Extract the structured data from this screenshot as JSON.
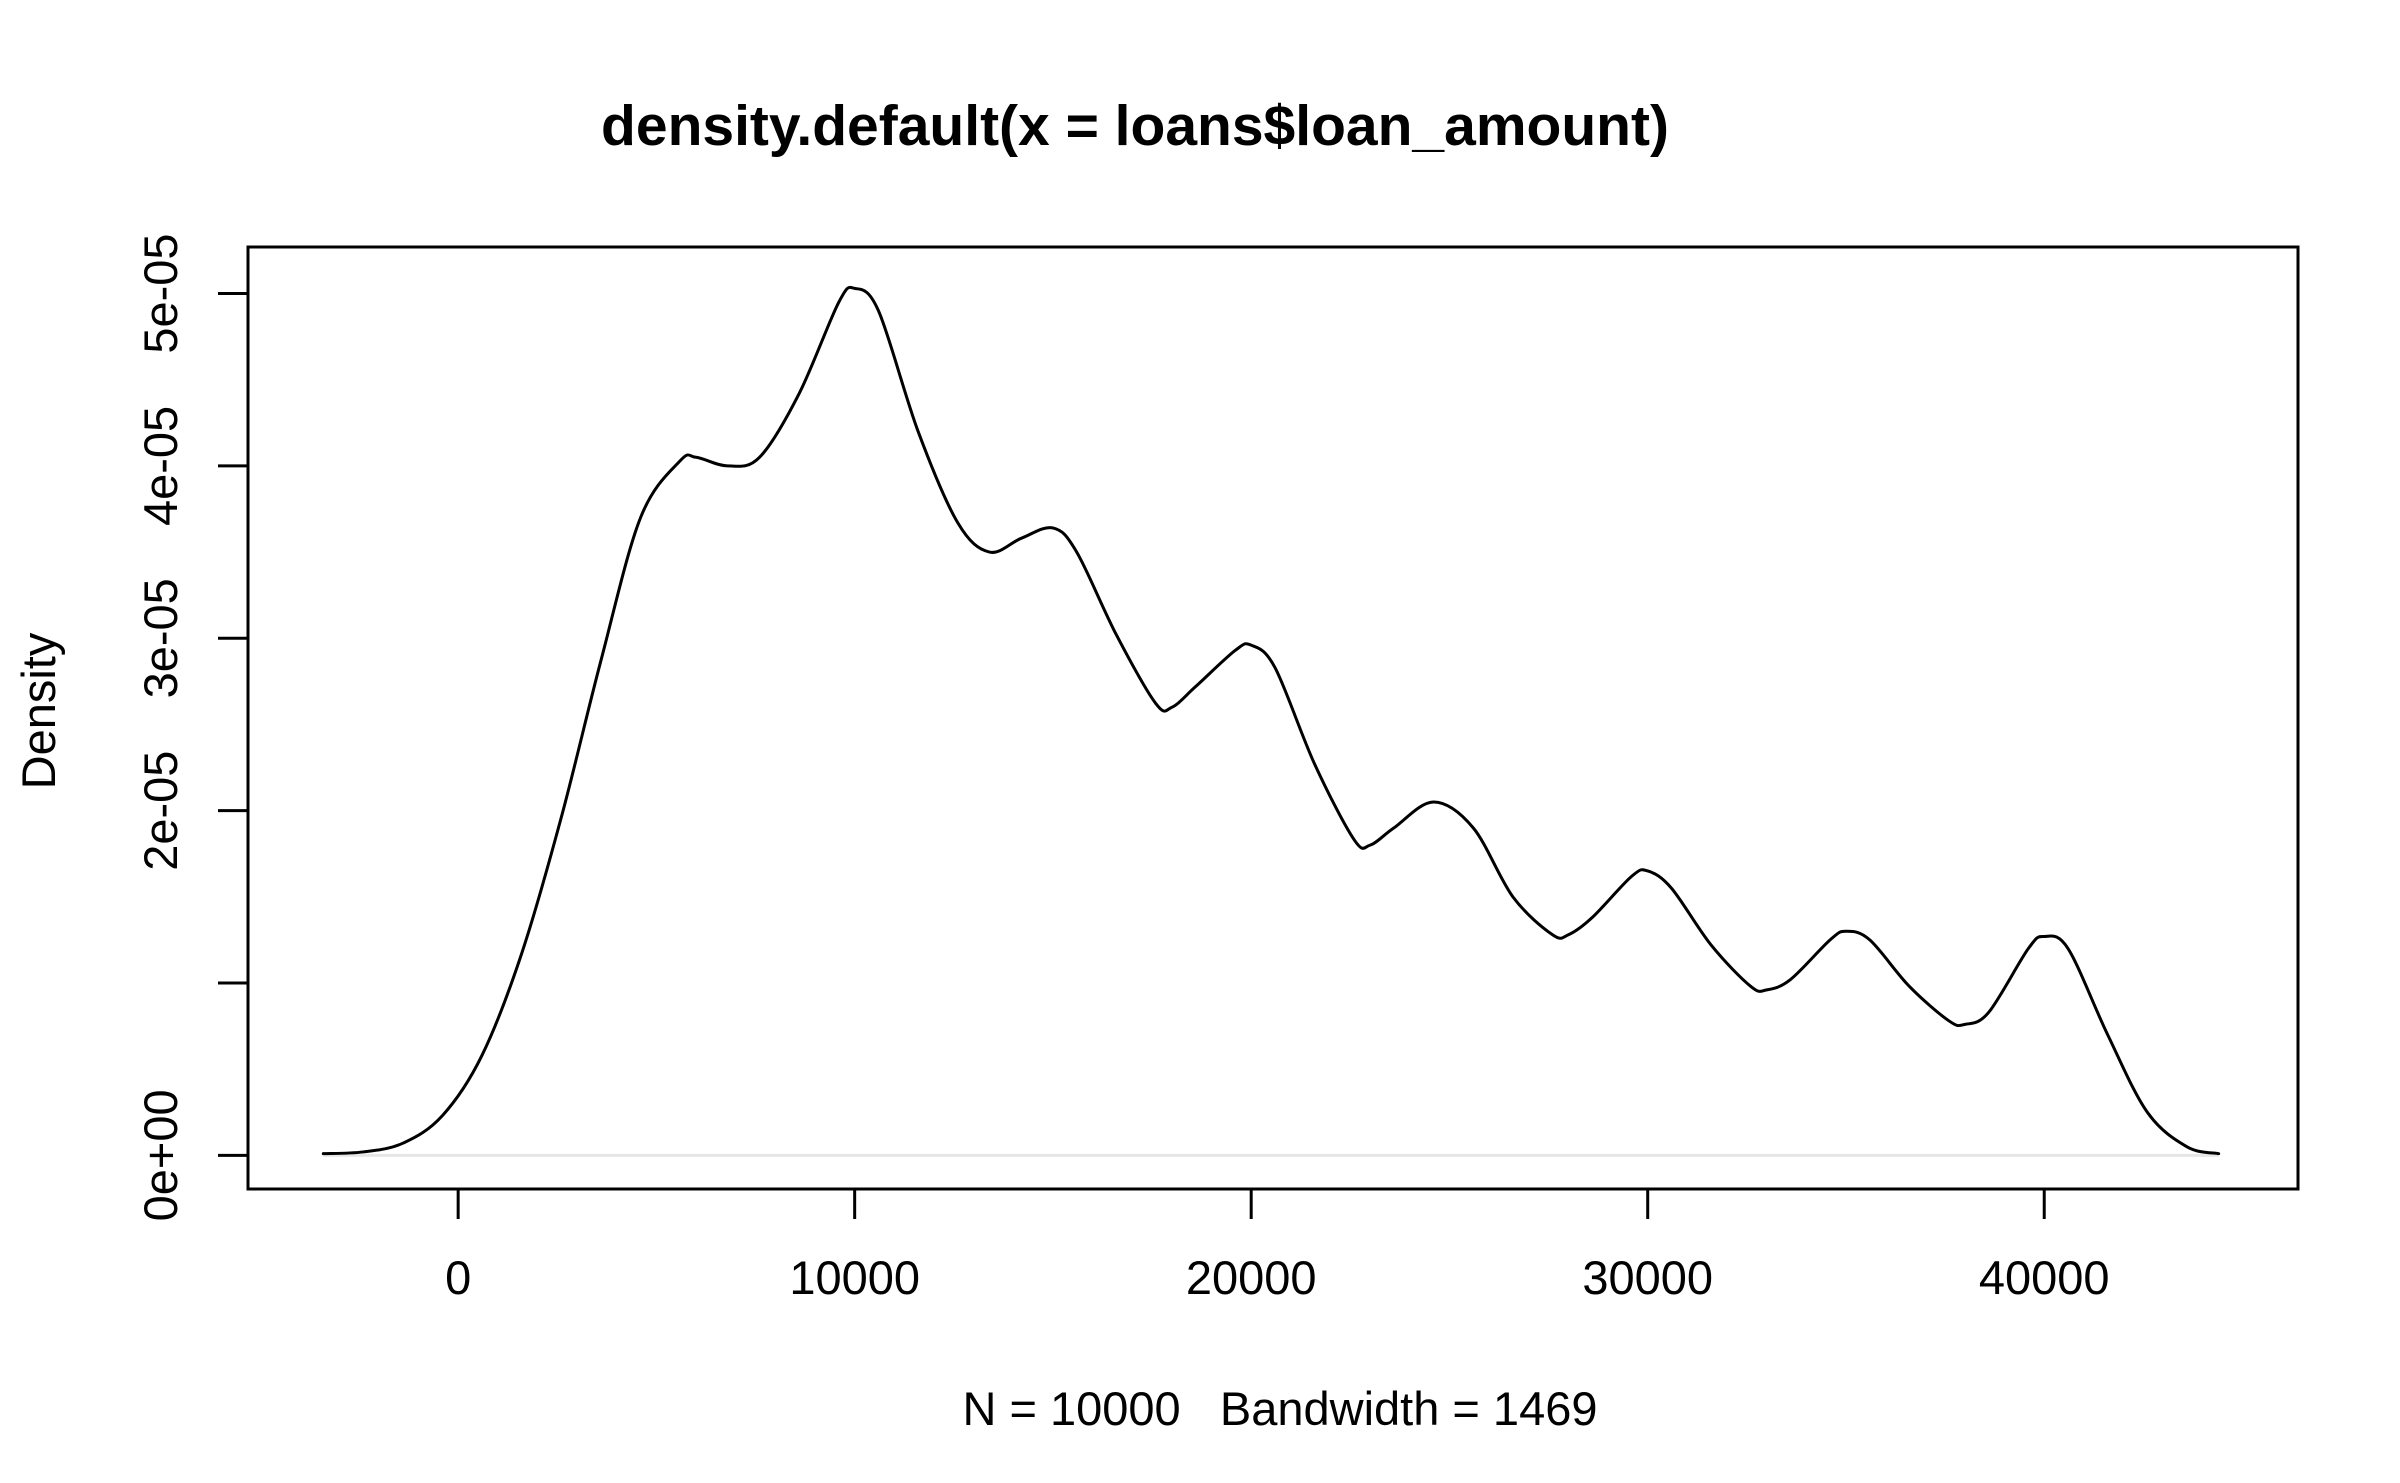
{
  "chart_data": {
    "type": "line",
    "title": "density.default(x = loans$loan_amount)",
    "xlabel": "N = 10000   Bandwidth = 1469",
    "ylabel": "Density",
    "xlim": [
      -5300,
      46400
    ],
    "ylim": [
      -1.95e-06,
      5.27e-05
    ],
    "x_ticks": [
      0,
      10000,
      20000,
      30000,
      40000
    ],
    "x_tick_labels": [
      "0",
      "10000",
      "20000",
      "30000",
      "40000"
    ],
    "y_ticks": [
      0,
      1e-05,
      2e-05,
      3e-05,
      4e-05,
      5e-05
    ],
    "y_tick_labels": [
      "0e+00",
      "",
      "2e-05",
      "3e-05",
      "4e-05",
      "5e-05"
    ],
    "grid": false,
    "zero_line_color": "#e6e6e6",
    "line_color": "#000000",
    "series": [
      {
        "x": [
          -3400,
          -2400,
          -1400,
          -400,
          600,
          1600,
          2600,
          3600,
          4600,
          5600,
          6000,
          6800,
          7600,
          8600,
          9600,
          10000,
          10600,
          11600,
          12600,
          13400,
          14200,
          15000,
          15600,
          16600,
          17600,
          18000,
          18600,
          19600,
          20000,
          20600,
          21600,
          22600,
          23000,
          23600,
          24600,
          25600,
          26600,
          27600,
          28000,
          28600,
          29600,
          30000,
          30600,
          31600,
          32600,
          33000,
          33600,
          34600,
          35000,
          35600,
          36600,
          37600,
          38000,
          38600,
          39600,
          40000,
          40600,
          41600,
          42600,
          43600,
          44400
        ],
        "y": [
          1e-07,
          2e-07,
          7e-07,
          2.3e-06,
          5.8e-06,
          1.17e-05,
          1.96e-05,
          2.87e-05,
          3.7e-05,
          4.03e-05,
          4.05e-05,
          4e-05,
          4.05e-05,
          4.42e-05,
          4.95e-05,
          5.03e-05,
          4.9e-05,
          4.2e-05,
          3.67e-05,
          3.5e-05,
          3.58e-05,
          3.64e-05,
          3.5e-05,
          3.02e-05,
          2.62e-05,
          2.6e-05,
          2.72e-05,
          2.93e-05,
          2.96e-05,
          2.83e-05,
          2.27e-05,
          1.83e-05,
          1.8e-05,
          1.9e-05,
          2.05e-05,
          1.9e-05,
          1.5e-05,
          1.28e-05,
          1.28e-05,
          1.38e-05,
          1.62e-05,
          1.65e-05,
          1.55e-05,
          1.22e-05,
          9.8e-06,
          9.6e-06,
          1.02e-05,
          1.25e-05,
          1.3e-05,
          1.25e-05,
          9.8e-06,
          7.8e-06,
          7.6e-06,
          8.3e-06,
          1.2e-05,
          1.27e-05,
          1.2e-05,
          7e-06,
          2.5e-06,
          5e-07,
          1e-07
        ]
      }
    ]
  }
}
